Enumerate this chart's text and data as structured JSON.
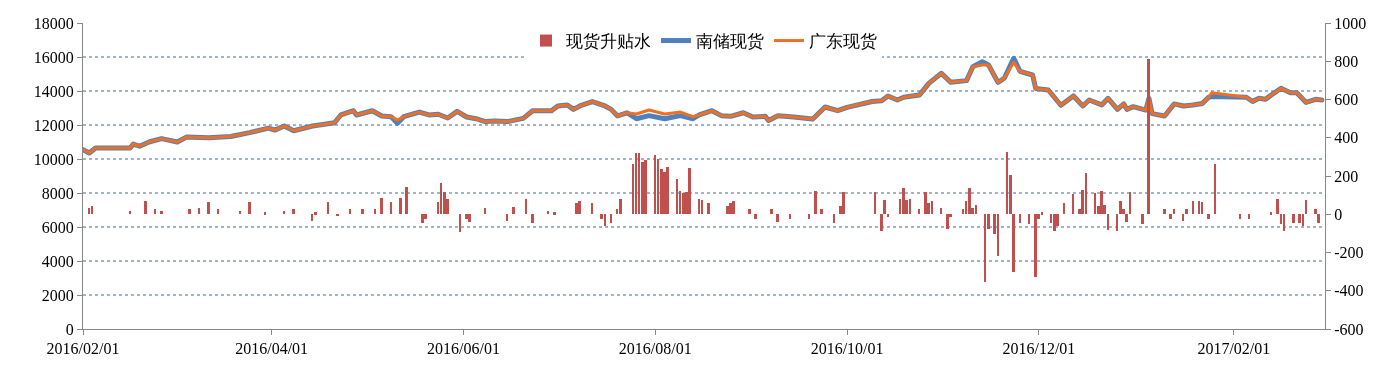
{
  "chart_data": {
    "type": "line",
    "x": [
      "2016-02-01",
      "2016-02-03",
      "2016-02-05",
      "2016-02-16",
      "2016-02-17",
      "2016-02-19",
      "2016-02-22",
      "2016-02-26",
      "2016-03-02",
      "2016-03-05",
      "2016-03-12",
      "2016-03-19",
      "2016-03-25",
      "2016-03-31",
      "2016-04-02",
      "2016-04-05",
      "2016-04-08",
      "2016-04-14",
      "2016-04-21",
      "2016-04-23",
      "2016-04-27",
      "2016-04-28",
      "2016-05-03",
      "2016-05-06",
      "2016-05-09",
      "2016-05-11",
      "2016-05-13",
      "2016-05-18",
      "2016-05-21",
      "2016-05-24",
      "2016-05-27",
      "2016-05-30",
      "2016-06-02",
      "2016-06-05",
      "2016-06-08",
      "2016-06-11",
      "2016-06-15",
      "2016-06-20",
      "2016-06-23",
      "2016-06-29",
      "2016-07-01",
      "2016-07-04",
      "2016-07-06",
      "2016-07-08",
      "2016-07-12",
      "2016-07-16",
      "2016-07-18",
      "2016-07-20",
      "2016-07-23",
      "2016-07-26",
      "2016-07-30",
      "2016-08-04",
      "2016-08-09",
      "2016-08-13",
      "2016-08-15",
      "2016-08-19",
      "2016-08-22",
      "2016-08-25",
      "2016-08-29",
      "2016-09-01",
      "2016-09-05",
      "2016-09-06",
      "2016-09-09",
      "2016-09-14",
      "2016-09-20",
      "2016-09-21",
      "2016-09-24",
      "2016-09-28",
      "2016-10-01",
      "2016-10-09",
      "2016-10-12",
      "2016-10-14",
      "2016-10-17",
      "2016-10-19",
      "2016-10-24",
      "2016-10-27",
      "2016-10-31",
      "2016-11-03",
      "2016-11-08",
      "2016-11-10",
      "2016-11-13",
      "2016-11-15",
      "2016-11-18",
      "2016-11-20",
      "2016-11-23",
      "2016-11-25",
      "2016-11-29",
      "2016-11-30",
      "2016-12-04",
      "2016-12-08",
      "2016-12-12",
      "2016-12-15",
      "2016-12-17",
      "2016-12-21",
      "2016-12-23",
      "2016-12-26",
      "2016-12-28",
      "2016-12-29",
      "2016-12-31",
      "2017-01-04",
      "2017-01-05",
      "2017-01-06",
      "2017-01-10",
      "2017-01-13",
      "2017-01-16",
      "2017-01-19",
      "2017-01-22",
      "2017-01-24",
      "2017-01-25",
      "2017-02-05",
      "2017-02-07",
      "2017-02-09",
      "2017-02-11",
      "2017-02-16",
      "2017-02-19",
      "2017-02-21",
      "2017-02-24",
      "2017-02-27",
      "2017-03-01"
    ],
    "series": [
      {
        "name": "现货升贴水",
        "type": "bar",
        "axis": "y2",
        "color": "#c0504d",
        "x": [
          "2016-02-03",
          "2016-02-04",
          "2016-02-16",
          "2016-02-21",
          "2016-02-24",
          "2016-02-26",
          "2016-03-06",
          "2016-03-09",
          "2016-03-12",
          "2016-03-15",
          "2016-03-22",
          "2016-03-25",
          "2016-03-30",
          "2016-04-05",
          "2016-04-08",
          "2016-04-14",
          "2016-04-15",
          "2016-04-19",
          "2016-04-22",
          "2016-04-26",
          "2016-04-30",
          "2016-05-04",
          "2016-05-06",
          "2016-05-09",
          "2016-05-12",
          "2016-05-14",
          "2016-05-19",
          "2016-05-20",
          "2016-05-24",
          "2016-05-25",
          "2016-05-26",
          "2016-05-27",
          "2016-05-31",
          "2016-06-02",
          "2016-06-03",
          "2016-06-08",
          "2016-06-15",
          "2016-06-17",
          "2016-06-21",
          "2016-06-23",
          "2016-06-28",
          "2016-06-30",
          "2016-07-07",
          "2016-07-08",
          "2016-07-12",
          "2016-07-15",
          "2016-07-16",
          "2016-07-18",
          "2016-07-20",
          "2016-07-21",
          "2016-07-25",
          "2016-07-26",
          "2016-07-27",
          "2016-07-28",
          "2016-07-29",
          "2016-08-01",
          "2016-08-02",
          "2016-08-03",
          "2016-08-04",
          "2016-08-05",
          "2016-08-08",
          "2016-08-09",
          "2016-08-10",
          "2016-08-11",
          "2016-08-12",
          "2016-08-15",
          "2016-08-16",
          "2016-08-18",
          "2016-08-24",
          "2016-08-25",
          "2016-08-26",
          "2016-08-31",
          "2016-09-02",
          "2016-09-07",
          "2016-09-09",
          "2016-09-13",
          "2016-09-19",
          "2016-09-21",
          "2016-09-23",
          "2016-09-27",
          "2016-09-29",
          "2016-09-30",
          "2016-10-10",
          "2016-10-12",
          "2016-10-13",
          "2016-10-14",
          "2016-10-18",
          "2016-10-19",
          "2016-10-20",
          "2016-10-21",
          "2016-10-24",
          "2016-10-26",
          "2016-10-27",
          "2016-10-28",
          "2016-10-31",
          "2016-11-02",
          "2016-11-03",
          "2016-11-07",
          "2016-11-08",
          "2016-11-09",
          "2016-11-10",
          "2016-11-11",
          "2016-11-14",
          "2016-11-15",
          "2016-11-17",
          "2016-11-18",
          "2016-11-21",
          "2016-11-22",
          "2016-11-23",
          "2016-11-25",
          "2016-11-28",
          "2016-11-30",
          "2016-12-01",
          "2016-12-02",
          "2016-12-05",
          "2016-12-06",
          "2016-12-07",
          "2016-12-09",
          "2016-12-12",
          "2016-12-14",
          "2016-12-15",
          "2016-12-16",
          "2016-12-19",
          "2016-12-20",
          "2016-12-21",
          "2016-12-22",
          "2016-12-23",
          "2016-12-26",
          "2016-12-27",
          "2016-12-28",
          "2016-12-29",
          "2016-12-30",
          "2017-01-03",
          "2017-01-05",
          "2017-01-10",
          "2017-01-12",
          "2017-01-13",
          "2017-01-16",
          "2017-01-17",
          "2017-01-19",
          "2017-01-21",
          "2017-01-22",
          "2017-01-24",
          "2017-01-26",
          "2017-02-03",
          "2017-02-06",
          "2017-02-13",
          "2017-02-15",
          "2017-02-16",
          "2017-02-17",
          "2017-02-20",
          "2017-02-22",
          "2017-02-23",
          "2017-02-24",
          "2017-02-27",
          "2017-02-28"
        ],
        "values": [
          35,
          45,
          15,
          70,
          25,
          15,
          25,
          35,
          65,
          25,
          15,
          65,
          10,
          15,
          25,
          -35,
          10,
          65,
          -10,
          30,
          25,
          25,
          85,
          65,
          85,
          140,
          -45,
          -25,
          65,
          165,
          115,
          80,
          -95,
          -25,
          -40,
          35,
          -35,
          40,
          80,
          -45,
          15,
          10,
          60,
          70,
          60,
          -25,
          -60,
          -45,
          25,
          80,
          265,
          320,
          320,
          275,
          285,
          310,
          290,
          235,
          220,
          245,
          185,
          120,
          110,
          115,
          240,
          80,
          75,
          60,
          45,
          60,
          70,
          25,
          -25,
          25,
          -40,
          -25,
          -25,
          120,
          25,
          -45,
          45,
          115,
          115,
          -90,
          75,
          -15,
          80,
          135,
          75,
          80,
          25,
          115,
          60,
          70,
          35,
          -75,
          -15,
          30,
          70,
          135,
          35,
          50,
          -355,
          -75,
          -105,
          -220,
          325,
          205,
          -300,
          -45,
          -50,
          -330,
          -25,
          10,
          -45,
          -85,
          -60,
          60,
          105,
          30,
          125,
          215,
          110,
          45,
          120,
          50,
          -80,
          -85,
          70,
          25,
          -40,
          115,
          -50,
          810,
          25,
          -25,
          25,
          -35,
          30,
          70,
          70,
          65,
          -25,
          265,
          -25,
          -25,
          10,
          80,
          -50,
          -85,
          -45,
          -45,
          -60,
          75,
          25,
          -45
        ]
      },
      {
        "name": "南储现货",
        "color": "#4f81bd",
        "values": [
          10550,
          10350,
          10650,
          10650,
          10880,
          10750,
          11000,
          11200,
          11000,
          11300,
          11250,
          11320,
          11550,
          11820,
          11700,
          11940,
          11660,
          11940,
          12130,
          12590,
          12840,
          12590,
          12840,
          12530,
          12490,
          12100,
          12490,
          12760,
          12590,
          12630,
          12410,
          12800,
          12470,
          12370,
          12200,
          12240,
          12200,
          12390,
          12840,
          12840,
          13120,
          13180,
          12920,
          13120,
          13380,
          13120,
          12920,
          12530,
          12720,
          12370,
          12550,
          12370,
          12550,
          12370,
          12590,
          12840,
          12550,
          12510,
          12720,
          12470,
          12510,
          12270,
          12550,
          12470,
          12350,
          12510,
          13060,
          12840,
          13040,
          13380,
          13430,
          13710,
          13470,
          13630,
          13760,
          14450,
          15040,
          14510,
          14610,
          15430,
          15720,
          15530,
          14510,
          14750,
          15920,
          15160,
          14940,
          14150,
          14060,
          13160,
          13710,
          13120,
          13470,
          13180,
          13570,
          12920,
          13240,
          12920,
          13080,
          12880,
          13570,
          12670,
          12530,
          13240,
          13120,
          13180,
          13270,
          13630,
          13670,
          13630,
          13380,
          13570,
          13510,
          14160,
          13900,
          13900,
          13330,
          13510,
          13470
        ]
      },
      {
        "name": "广东现货",
        "color": "#f07023",
        "values": [
          10550,
          10350,
          10650,
          10650,
          10880,
          10750,
          11000,
          11200,
          11000,
          11300,
          11250,
          11320,
          11550,
          11820,
          11700,
          11940,
          11660,
          11940,
          12130,
          12590,
          12840,
          12590,
          12840,
          12530,
          12490,
          12290,
          12490,
          12760,
          12590,
          12630,
          12410,
          12800,
          12470,
          12370,
          12200,
          12240,
          12200,
          12390,
          12840,
          12840,
          13120,
          13180,
          12920,
          13120,
          13380,
          13120,
          12920,
          12530,
          12720,
          12650,
          12880,
          12650,
          12760,
          12490,
          12590,
          12840,
          12550,
          12510,
          12720,
          12470,
          12510,
          12270,
          12550,
          12470,
          12350,
          12510,
          13060,
          12840,
          13040,
          13380,
          13430,
          13710,
          13470,
          13630,
          13760,
          14450,
          15040,
          14510,
          14610,
          15430,
          15530,
          15530,
          14510,
          14750,
          15690,
          15160,
          14940,
          14150,
          14060,
          13160,
          13710,
          13120,
          13470,
          13180,
          13570,
          12920,
          13240,
          12920,
          13080,
          12880,
          13570,
          12670,
          12530,
          13240,
          13120,
          13180,
          13270,
          13630,
          13900,
          13630,
          13380,
          13570,
          13510,
          14160,
          13900,
          13900,
          13330,
          13510,
          13470
        ]
      }
    ],
    "xlim": [
      "2016-02-01",
      "2017-03-02"
    ],
    "xticks": [
      {
        "value": "2016-02-01",
        "label": "2016/02/01"
      },
      {
        "value": "2016-04-01",
        "label": "2016/04/01"
      },
      {
        "value": "2016-06-01",
        "label": "2016/06/01"
      },
      {
        "value": "2016-08-01",
        "label": "2016/08/01"
      },
      {
        "value": "2016-10-01",
        "label": "2016/10/01"
      },
      {
        "value": "2016-12-01",
        "label": "2016/12/01"
      },
      {
        "value": "2017-02-01",
        "label": "2017/02/01"
      }
    ],
    "ylim": [
      0,
      18000
    ],
    "yticks": [
      0,
      2000,
      4000,
      6000,
      8000,
      10000,
      12000,
      14000,
      16000,
      18000
    ],
    "y2lim": [
      -600,
      1000
    ],
    "y2ticks": [
      -600,
      -400,
      -200,
      0,
      200,
      400,
      600,
      800,
      1000
    ],
    "grid": "y",
    "legend": "top",
    "line_style": "solid",
    "marker": "none"
  }
}
